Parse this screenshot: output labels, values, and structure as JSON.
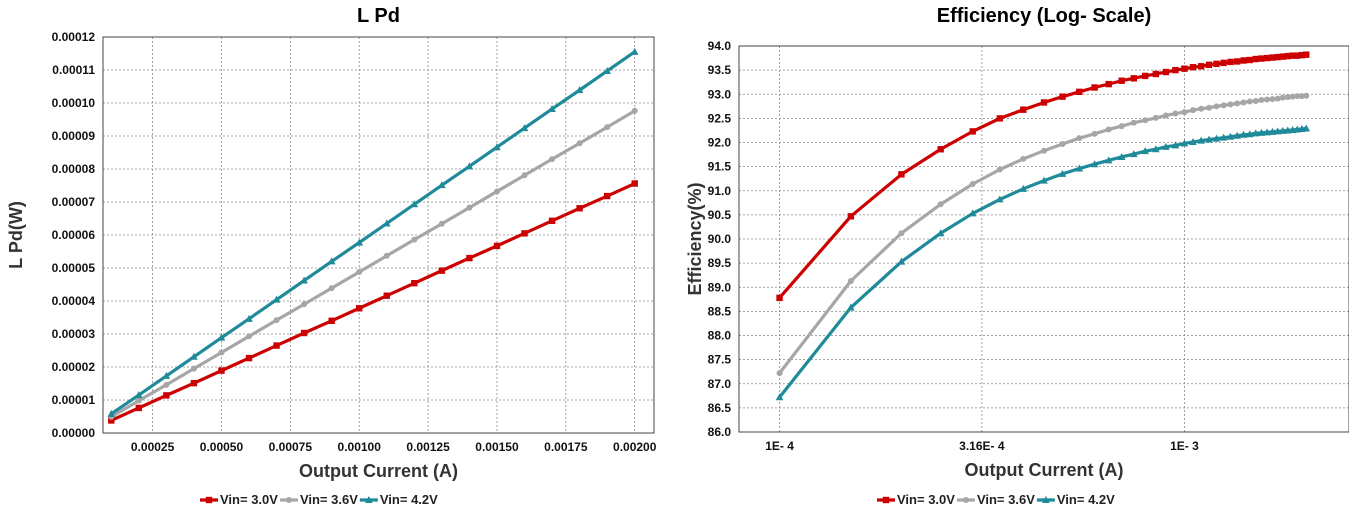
{
  "chart_data": [
    {
      "type": "line",
      "title": "L Pd",
      "xlabel": "Output Current (A)",
      "ylabel": "L Pd(W)",
      "xlim": [
        7e-05,
        0.00207
      ],
      "ylim": [
        0,
        0.00012
      ],
      "xticks": [
        "0.00025",
        "0.00050",
        "0.00075",
        "0.00100",
        "0.00125",
        "0.00150",
        "0.00175",
        "0.00200"
      ],
      "xtick_values": [
        0.00025,
        0.0005,
        0.00075,
        0.001,
        0.00125,
        0.0015,
        0.00175,
        0.002
      ],
      "yticks": [
        "0.00000",
        "0.00001",
        "0.00002",
        "0.00003",
        "0.00004",
        "0.00005",
        "0.00006",
        "0.00007",
        "0.00008",
        "0.00009",
        "0.00010",
        "0.00011",
        "0.00012"
      ],
      "ytick_values": [
        0,
        1e-05,
        2e-05,
        3e-05,
        4e-05,
        5e-05,
        6e-05,
        7e-05,
        8e-05,
        9e-05,
        0.0001,
        0.00011,
        0.00012
      ],
      "grid": true,
      "legend": "bottom",
      "x": [
        0.0001,
        0.0002,
        0.0003,
        0.0004,
        0.0005,
        0.0006,
        0.0007,
        0.0008,
        0.0009,
        0.001,
        0.0011,
        0.0012,
        0.0013,
        0.0014,
        0.0015,
        0.0016,
        0.0017,
        0.0018,
        0.0019,
        0.002
      ],
      "series": [
        {
          "name": "Vin= 3.0V",
          "color": "#cc0000",
          "marker": "square",
          "values": [
            3.8e-06,
            7.6e-06,
            1.14e-05,
            1.51e-05,
            1.89e-05,
            2.27e-05,
            2.65e-05,
            3.03e-05,
            3.4e-05,
            3.78e-05,
            4.16e-05,
            4.54e-05,
            4.92e-05,
            5.3e-05,
            5.67e-05,
            6.05e-05,
            6.43e-05,
            6.81e-05,
            7.18e-05,
            7.56e-05
          ]
        },
        {
          "name": "Vin= 3.6V",
          "color": "#a6a6a6",
          "marker": "circle",
          "values": [
            4.9e-06,
            9.8e-06,
            1.46e-05,
            1.95e-05,
            2.44e-05,
            2.93e-05,
            3.42e-05,
            3.9e-05,
            4.39e-05,
            4.88e-05,
            5.37e-05,
            5.86e-05,
            6.34e-05,
            6.83e-05,
            7.32e-05,
            7.81e-05,
            8.3e-05,
            8.78e-05,
            9.27e-05,
            9.76e-05
          ]
        },
        {
          "name": "Vin= 4.2V",
          "color": "#1f8a99",
          "marker": "triangle",
          "values": [
            5.8e-06,
            1.15e-05,
            1.73e-05,
            2.31e-05,
            2.89e-05,
            3.46e-05,
            4.04e-05,
            4.62e-05,
            5.2e-05,
            5.77e-05,
            6.35e-05,
            6.93e-05,
            7.51e-05,
            8.08e-05,
            8.66e-05,
            9.24e-05,
            9.82e-05,
            0.0001039,
            0.0001097,
            0.0001155
          ]
        }
      ]
    },
    {
      "type": "line",
      "title": "Efficiency (Log- Scale)",
      "xlabel": "Output Current (A)",
      "ylabel": "Efficiency(%)",
      "xscale": "log",
      "xlim": [
        7.94e-05,
        0.00255
      ],
      "ylim": [
        86.0,
        94.0
      ],
      "xticks": [
        "1E- 4",
        "3.16E- 4",
        "1E- 3"
      ],
      "xtick_values": [
        0.0001,
        0.000316,
        0.001
      ],
      "yticks": [
        "86.0",
        "86.5",
        "87.0",
        "87.5",
        "88.0",
        "88.5",
        "89.0",
        "89.5",
        "90.0",
        "90.5",
        "91.0",
        "91.5",
        "92.0",
        "92.5",
        "93.0",
        "93.5",
        "94.0"
      ],
      "ytick_values": [
        86.0,
        86.5,
        87.0,
        87.5,
        88.0,
        88.5,
        89.0,
        89.5,
        90.0,
        90.5,
        91.0,
        91.5,
        92.0,
        92.5,
        93.0,
        93.5,
        94.0
      ],
      "grid": true,
      "legend": "bottom",
      "x": [
        0.0001,
        0.00015,
        0.0002,
        0.00025,
        0.0003,
        0.00035,
        0.0004,
        0.00045,
        0.0005,
        0.00055,
        0.0006,
        0.00065,
        0.0007,
        0.00075,
        0.0008,
        0.00085,
        0.0009,
        0.00095,
        0.001,
        0.00105,
        0.0011,
        0.00115,
        0.0012,
        0.00125,
        0.0013,
        0.00135,
        0.0014,
        0.00145,
        0.0015,
        0.00155,
        0.0016,
        0.00165,
        0.0017,
        0.00175,
        0.0018,
        0.00185,
        0.0019,
        0.00195,
        0.002
      ],
      "series": [
        {
          "name": "Vin= 3.0V",
          "color": "#cc0000",
          "marker": "square",
          "values": [
            88.78,
            90.47,
            91.34,
            91.86,
            92.23,
            92.5,
            92.68,
            92.83,
            92.95,
            93.05,
            93.14,
            93.21,
            93.28,
            93.33,
            93.38,
            93.42,
            93.46,
            93.5,
            93.53,
            93.56,
            93.58,
            93.61,
            93.63,
            93.65,
            93.67,
            93.68,
            93.7,
            93.71,
            93.73,
            93.74,
            93.75,
            93.76,
            93.77,
            93.78,
            93.79,
            93.8,
            93.8,
            93.81,
            93.82
          ]
        },
        {
          "name": "Vin= 3.6V",
          "color": "#a6a6a6",
          "marker": "circle",
          "values": [
            87.22,
            89.13,
            90.12,
            90.72,
            91.14,
            91.44,
            91.66,
            91.83,
            91.97,
            92.09,
            92.18,
            92.27,
            92.34,
            92.41,
            92.46,
            92.51,
            92.56,
            92.6,
            92.63,
            92.67,
            92.7,
            92.72,
            92.75,
            92.77,
            92.79,
            92.81,
            92.83,
            92.85,
            92.86,
            92.88,
            92.89,
            92.9,
            92.91,
            92.93,
            92.94,
            92.95,
            92.96,
            92.96,
            92.97
          ]
        },
        {
          "name": "Vin= 4.2V",
          "color": "#1f8a99",
          "marker": "triangle",
          "values": [
            86.72,
            88.58,
            89.53,
            90.12,
            90.53,
            90.82,
            91.04,
            91.21,
            91.35,
            91.46,
            91.55,
            91.63,
            91.7,
            91.76,
            91.82,
            91.86,
            91.91,
            91.94,
            91.98,
            92.01,
            92.04,
            92.06,
            92.08,
            92.1,
            92.12,
            92.14,
            92.16,
            92.17,
            92.19,
            92.2,
            92.21,
            92.22,
            92.23,
            92.24,
            92.25,
            92.26,
            92.27,
            92.28,
            92.29
          ]
        }
      ]
    }
  ]
}
